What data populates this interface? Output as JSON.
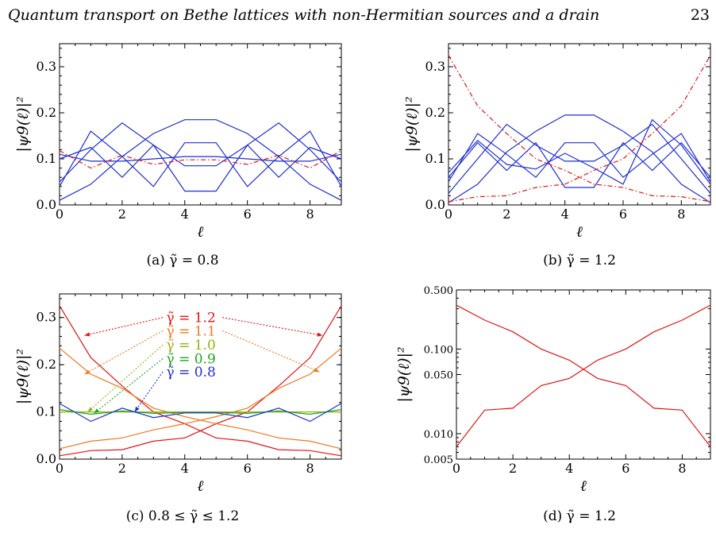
{
  "header": {
    "title": "Quantum transport on Bethe lattices with non-Hermitian sources and a drain",
    "page_number": "23"
  },
  "chart_data": [
    {
      "id": "a",
      "type": "line",
      "caption": "(a) γ̃ = 0.8",
      "xlabel": "ℓ",
      "ylabel": "|ψ9(ℓ)|²",
      "x": [
        0,
        1,
        2,
        3,
        4,
        5,
        6,
        7,
        8,
        9
      ],
      "xlim": [
        0,
        9
      ],
      "ylim": [
        0,
        0.35
      ],
      "yscale": "linear",
      "xticks": [
        0,
        2,
        4,
        6,
        8
      ],
      "yticks": [
        0.0,
        0.1,
        0.2,
        0.3
      ],
      "ytick_labels": [
        "0.0",
        "0.1",
        "0.2",
        "0.3"
      ],
      "series": [
        {
          "color": "#1f2fd0",
          "dash": "solid",
          "values": [
            0.01,
            0.045,
            0.105,
            0.155,
            0.185,
            0.185,
            0.155,
            0.105,
            0.045,
            0.01
          ]
        },
        {
          "color": "#1f2fd0",
          "dash": "solid",
          "values": [
            0.04,
            0.16,
            0.105,
            0.04,
            0.135,
            0.135,
            0.04,
            0.105,
            0.16,
            0.04
          ]
        },
        {
          "color": "#1f2fd0",
          "dash": "solid",
          "values": [
            0.1,
            0.125,
            0.06,
            0.13,
            0.03,
            0.03,
            0.13,
            0.06,
            0.125,
            0.1
          ]
        },
        {
          "color": "#1f2fd0",
          "dash": "solid",
          "values": [
            0.05,
            0.12,
            0.178,
            0.13,
            0.085,
            0.085,
            0.13,
            0.178,
            0.12,
            0.05
          ]
        },
        {
          "color": "#1f2fd0",
          "dash": "solid",
          "values": [
            0.11,
            0.095,
            0.095,
            0.1,
            0.105,
            0.105,
            0.1,
            0.095,
            0.095,
            0.11
          ]
        },
        {
          "color": "#e01515",
          "dash": "dashdot",
          "values": [
            0.118,
            0.08,
            0.108,
            0.088,
            0.098,
            0.098,
            0.088,
            0.108,
            0.08,
            0.118
          ]
        }
      ],
      "annotations": []
    },
    {
      "id": "b",
      "type": "line",
      "caption": "(b) γ̃ = 1.2",
      "xlabel": "ℓ",
      "ylabel": "|ψ9(ℓ)|²",
      "x": [
        0,
        1,
        2,
        3,
        4,
        5,
        6,
        7,
        8,
        9
      ],
      "xlim": [
        0,
        9
      ],
      "ylim": [
        0,
        0.35
      ],
      "yscale": "linear",
      "xticks": [
        0,
        2,
        4,
        6,
        8
      ],
      "yticks": [
        0.0,
        0.1,
        0.2,
        0.3
      ],
      "ytick_labels": [
        "0.0",
        "0.1",
        "0.2",
        "0.3"
      ],
      "series": [
        {
          "color": "#1f2fd0",
          "dash": "solid",
          "values": [
            0.005,
            0.045,
            0.115,
            0.16,
            0.195,
            0.195,
            0.16,
            0.115,
            0.045,
            0.005
          ]
        },
        {
          "color": "#1f2fd0",
          "dash": "solid",
          "values": [
            0.05,
            0.155,
            0.11,
            0.06,
            0.135,
            0.135,
            0.06,
            0.11,
            0.155,
            0.05
          ]
        },
        {
          "color": "#1f2fd0",
          "dash": "solid",
          "values": [
            0.06,
            0.135,
            0.075,
            0.135,
            0.038,
            0.038,
            0.135,
            0.075,
            0.135,
            0.06
          ]
        },
        {
          "color": "#1f2fd0",
          "dash": "solid",
          "values": [
            0.025,
            0.1,
            0.175,
            0.13,
            0.095,
            0.095,
            0.13,
            0.175,
            0.1,
            0.025
          ]
        },
        {
          "color": "#1f2fd0",
          "dash": "solid",
          "values": [
            0.07,
            0.14,
            0.088,
            0.078,
            0.112,
            0.08,
            0.045,
            0.185,
            0.13,
            0.045
          ]
        },
        {
          "color": "#e01515",
          "dash": "dashdot",
          "values": [
            0.325,
            0.215,
            0.155,
            0.1,
            0.075,
            0.045,
            0.038,
            0.02,
            0.018,
            0.007
          ]
        },
        {
          "color": "#e01515",
          "dash": "dashdot",
          "values": [
            0.007,
            0.018,
            0.02,
            0.038,
            0.045,
            0.075,
            0.1,
            0.155,
            0.215,
            0.325
          ]
        }
      ],
      "annotations": []
    },
    {
      "id": "c",
      "type": "line",
      "caption": "(c) 0.8 ≤ γ̃ ≤ 1.2",
      "xlabel": "ℓ",
      "ylabel": "|ψ9(ℓ)|²",
      "x": [
        0,
        1,
        2,
        3,
        4,
        5,
        6,
        7,
        8,
        9
      ],
      "xlim": [
        0,
        9
      ],
      "ylim": [
        0,
        0.35
      ],
      "yscale": "linear",
      "xticks": [
        0,
        2,
        4,
        6,
        8
      ],
      "yticks": [
        0.0,
        0.1,
        0.2,
        0.3
      ],
      "ytick_labels": [
        "0.0",
        "0.1",
        "0.2",
        "0.3"
      ],
      "series": [
        {
          "color": "#e01515",
          "dash": "solid",
          "values": [
            0.325,
            0.215,
            0.155,
            0.1,
            0.075,
            0.045,
            0.038,
            0.02,
            0.018,
            0.007
          ]
        },
        {
          "color": "#e01515",
          "dash": "solid",
          "values": [
            0.007,
            0.018,
            0.02,
            0.038,
            0.045,
            0.075,
            0.1,
            0.155,
            0.215,
            0.325
          ]
        },
        {
          "color": "#f07820",
          "dash": "solid",
          "values": [
            0.235,
            0.18,
            0.15,
            0.108,
            0.09,
            0.075,
            0.062,
            0.045,
            0.038,
            0.022
          ]
        },
        {
          "color": "#f07820",
          "dash": "solid",
          "values": [
            0.022,
            0.038,
            0.045,
            0.062,
            0.075,
            0.09,
            0.108,
            0.15,
            0.18,
            0.235
          ]
        },
        {
          "color": "#9ab010",
          "dash": "solid",
          "values": [
            0.1,
            0.1,
            0.1,
            0.1,
            0.1,
            0.1,
            0.1,
            0.1,
            0.1,
            0.1
          ]
        },
        {
          "color": "#1fa61f",
          "dash": "solid",
          "values": [
            0.105,
            0.095,
            0.102,
            0.097,
            0.099,
            0.099,
            0.097,
            0.102,
            0.095,
            0.105
          ]
        },
        {
          "color": "#1f2fd0",
          "dash": "solid",
          "values": [
            0.118,
            0.08,
            0.108,
            0.088,
            0.098,
            0.098,
            0.088,
            0.108,
            0.08,
            0.118
          ]
        }
      ],
      "annotations": [
        {
          "text": "γ̃ = 1.2",
          "color": "#e01515",
          "label_at": [
            4.2,
            0.3
          ],
          "arrows": [
            [
              3.3,
              0.3,
              0.8,
              0.262
            ],
            [
              5.2,
              0.3,
              8.4,
              0.262
            ]
          ]
        },
        {
          "text": "γ̃ = 1.1",
          "color": "#f07820",
          "label_at": [
            4.2,
            0.272
          ],
          "arrows": [
            [
              3.3,
              0.272,
              0.8,
              0.18
            ],
            [
              5.2,
              0.272,
              8.3,
              0.185
            ]
          ]
        },
        {
          "text": "γ̃ = 1.0",
          "color": "#9ab010",
          "label_at": [
            4.2,
            0.242
          ],
          "arrows": [
            [
              3.3,
              0.242,
              0.9,
              0.1
            ]
          ]
        },
        {
          "text": "γ̃ = 0.9",
          "color": "#1fa61f",
          "label_at": [
            4.2,
            0.213
          ],
          "arrows": [
            [
              3.3,
              0.213,
              1.1,
              0.097
            ]
          ]
        },
        {
          "text": "γ̃ = 0.8",
          "color": "#1f2fd0",
          "label_at": [
            4.2,
            0.185
          ],
          "arrows": [
            [
              3.3,
              0.185,
              2.4,
              0.1
            ]
          ]
        }
      ]
    },
    {
      "id": "d",
      "type": "line",
      "caption": "(d) γ̃ = 1.2",
      "xlabel": "ℓ",
      "ylabel": "|ψ9(ℓ)|²",
      "x": [
        0,
        1,
        2,
        3,
        4,
        5,
        6,
        7,
        8,
        9
      ],
      "xlim": [
        0,
        9
      ],
      "ylim": [
        0.005,
        0.5
      ],
      "yscale": "log",
      "xticks": [
        0,
        2,
        4,
        6,
        8
      ],
      "yticks": [
        0.005,
        0.01,
        0.05,
        0.1,
        0.5
      ],
      "ytick_labels": [
        "0.005",
        "0.010",
        "0.050",
        "0.100",
        "0.500"
      ],
      "series": [
        {
          "color": "#e01515",
          "dash": "solid",
          "values": [
            0.33,
            0.22,
            0.16,
            0.1,
            0.074,
            0.045,
            0.037,
            0.02,
            0.019,
            0.007
          ]
        },
        {
          "color": "#e01515",
          "dash": "solid",
          "values": [
            0.007,
            0.019,
            0.02,
            0.037,
            0.045,
            0.074,
            0.1,
            0.16,
            0.22,
            0.33
          ]
        }
      ],
      "annotations": []
    }
  ]
}
